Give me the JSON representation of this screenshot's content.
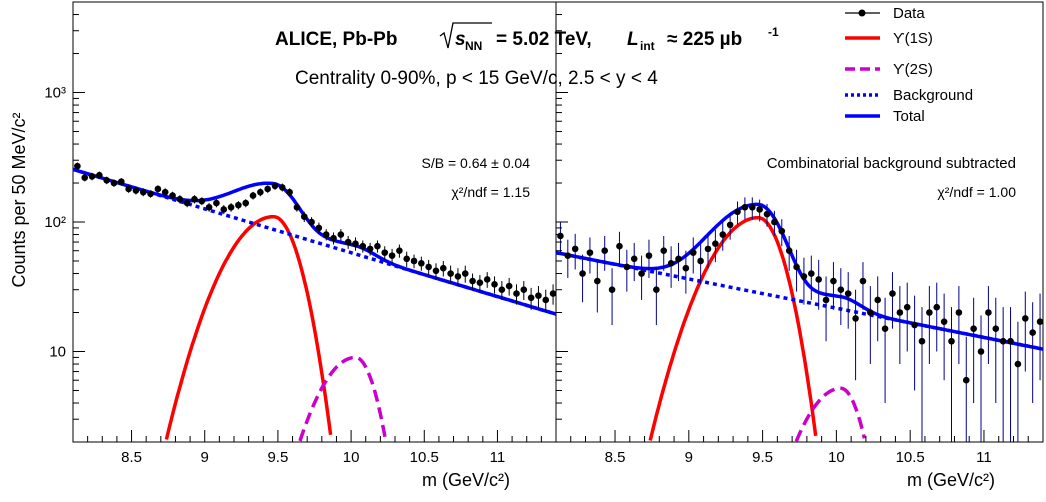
{
  "chart_data": [
    {
      "type": "scatter",
      "panel": "left",
      "header_title": "ALICE, Pb-Pb",
      "energy_label": "= 5.02 TeV,",
      "lumi_label": "≈ 225 µb",
      "subtitle": "Centrality 0-90%, p < 15 GeV/c, 2.5 < y < 4",
      "ylabel": "Counts per 50 MeV/c²",
      "xlabel": "m (GeV/c²)",
      "x_range": [
        8.1,
        11.4
      ],
      "y_range": [
        2,
        5000
      ],
      "y_scale": "log",
      "x_ticks": [
        "8.5",
        "9",
        "9.5",
        "10",
        "10.5",
        "11"
      ],
      "y_ticks": [
        "10",
        "10²",
        "10³"
      ],
      "annotations": [
        "S/B = 0.64 ± 0.04",
        "χ²/ndf = 1.15"
      ],
      "series": [
        {
          "name": "Data",
          "style": "points",
          "color": "#000000",
          "x": [
            8.13,
            8.18,
            8.23,
            8.28,
            8.33,
            8.38,
            8.43,
            8.48,
            8.53,
            8.58,
            8.63,
            8.68,
            8.73,
            8.78,
            8.83,
            8.88,
            8.93,
            8.98,
            9.03,
            9.08,
            9.13,
            9.18,
            9.23,
            9.28,
            9.33,
            9.38,
            9.43,
            9.48,
            9.53,
            9.58,
            9.63,
            9.68,
            9.73,
            9.78,
            9.83,
            9.88,
            9.93,
            9.98,
            10.03,
            10.08,
            10.13,
            10.18,
            10.23,
            10.28,
            10.33,
            10.38,
            10.43,
            10.48,
            10.53,
            10.58,
            10.63,
            10.68,
            10.73,
            10.78,
            10.83,
            10.88,
            10.93,
            10.98,
            11.03,
            11.08,
            11.13,
            11.18,
            11.23,
            11.28,
            11.33,
            11.38
          ],
          "y": [
            270,
            220,
            225,
            230,
            210,
            200,
            205,
            180,
            175,
            170,
            165,
            180,
            170,
            160,
            150,
            140,
            150,
            145,
            130,
            140,
            125,
            130,
            135,
            140,
            160,
            170,
            180,
            190,
            185,
            170,
            130,
            110,
            100,
            90,
            80,
            75,
            80,
            70,
            68,
            65,
            62,
            65,
            58,
            55,
            60,
            52,
            50,
            48,
            45,
            42,
            44,
            40,
            38,
            40,
            35,
            34,
            36,
            33,
            30,
            32,
            28,
            30,
            26,
            27,
            25,
            28
          ],
          "yerr": [
            18,
            14,
            15,
            15,
            14,
            13,
            13,
            12,
            12,
            12,
            11,
            12,
            12,
            11,
            11,
            10,
            11,
            10,
            10,
            10,
            10,
            10,
            10,
            10,
            11,
            12,
            12,
            13,
            13,
            12,
            10,
            10,
            9,
            9,
            8,
            8,
            8,
            8,
            8,
            7,
            7,
            7,
            7,
            7,
            7,
            7,
            6,
            6,
            6,
            6,
            6,
            6,
            6,
            6,
            5,
            5,
            5,
            5,
            5,
            5,
            5,
            5,
            5,
            5,
            5,
            5
          ]
        },
        {
          "name": "ϒ(1S)",
          "style": "solid",
          "color": "#ff0000"
        },
        {
          "name": "ϒ(2S)",
          "style": "dashed",
          "color": "#cc00cc"
        },
        {
          "name": "Background",
          "style": "dotted",
          "color": "#0000ff"
        },
        {
          "name": "Total",
          "style": "solid",
          "color": "#0000ff"
        }
      ]
    },
    {
      "type": "scatter",
      "panel": "right",
      "xlabel": "m (GeV/c²)",
      "x_range": [
        8.1,
        11.4
      ],
      "y_range": [
        2,
        5000
      ],
      "y_scale": "log",
      "x_ticks": [
        "8.5",
        "9",
        "9.5",
        "10",
        "10.5",
        "11"
      ],
      "annotations": [
        "Combinatorial background subtracted",
        "χ²/ndf = 1.00"
      ],
      "series": [
        {
          "name": "Data",
          "style": "points",
          "color": "#000000",
          "x": [
            8.13,
            8.18,
            8.23,
            8.28,
            8.33,
            8.38,
            8.43,
            8.48,
            8.53,
            8.58,
            8.63,
            8.68,
            8.73,
            8.78,
            8.83,
            8.88,
            8.93,
            8.98,
            9.03,
            9.08,
            9.13,
            9.18,
            9.23,
            9.28,
            9.33,
            9.38,
            9.43,
            9.48,
            9.53,
            9.58,
            9.63,
            9.68,
            9.73,
            9.78,
            9.83,
            9.88,
            9.93,
            9.98,
            10.03,
            10.08,
            10.13,
            10.18,
            10.23,
            10.28,
            10.33,
            10.38,
            10.43,
            10.48,
            10.53,
            10.58,
            10.63,
            10.68,
            10.73,
            10.78,
            10.83,
            10.88,
            10.93,
            10.98,
            11.03,
            11.08,
            11.13,
            11.18,
            11.23,
            11.28,
            11.33,
            11.38
          ],
          "y": [
            78,
            55,
            62,
            40,
            58,
            35,
            60,
            30,
            65,
            45,
            52,
            40,
            55,
            30,
            60,
            48,
            52,
            44,
            58,
            50,
            62,
            68,
            80,
            95,
            120,
            130,
            130,
            125,
            115,
            100,
            85,
            60,
            45,
            38,
            40,
            36,
            25,
            35,
            30,
            28,
            18,
            35,
            20,
            25,
            15,
            28,
            20,
            22,
            16,
            12,
            20,
            22,
            17,
            12,
            20,
            6,
            15,
            10,
            20,
            15,
            12,
            12,
            8,
            18,
            14,
            17
          ],
          "yerr": [
            22,
            18,
            19,
            16,
            18,
            15,
            18,
            14,
            19,
            16,
            17,
            15,
            18,
            14,
            18,
            17,
            17,
            16,
            18,
            17,
            18,
            19,
            20,
            22,
            24,
            25,
            25,
            24,
            23,
            22,
            20,
            18,
            16,
            15,
            15,
            15,
            13,
            14,
            14,
            13,
            12,
            14,
            12,
            13,
            11,
            13,
            12,
            12,
            11,
            10,
            12,
            12,
            11,
            10,
            12,
            7,
            11,
            9,
            12,
            11,
            10,
            10,
            9,
            11,
            10,
            11
          ]
        },
        {
          "name": "ϒ(1S)",
          "style": "solid",
          "color": "#ff0000"
        },
        {
          "name": "ϒ(2S)",
          "style": "dashed",
          "color": "#cc00cc"
        },
        {
          "name": "Background",
          "style": "dotted",
          "color": "#0000ff"
        },
        {
          "name": "Total",
          "style": "solid",
          "color": "#0000ff"
        }
      ]
    }
  ],
  "legend": {
    "placement": "top-right",
    "items": [
      {
        "label": "Data"
      },
      {
        "label": "ϒ(1S)"
      },
      {
        "label": "ϒ(2S)"
      },
      {
        "label": "Background"
      },
      {
        "label": "Total"
      }
    ]
  }
}
